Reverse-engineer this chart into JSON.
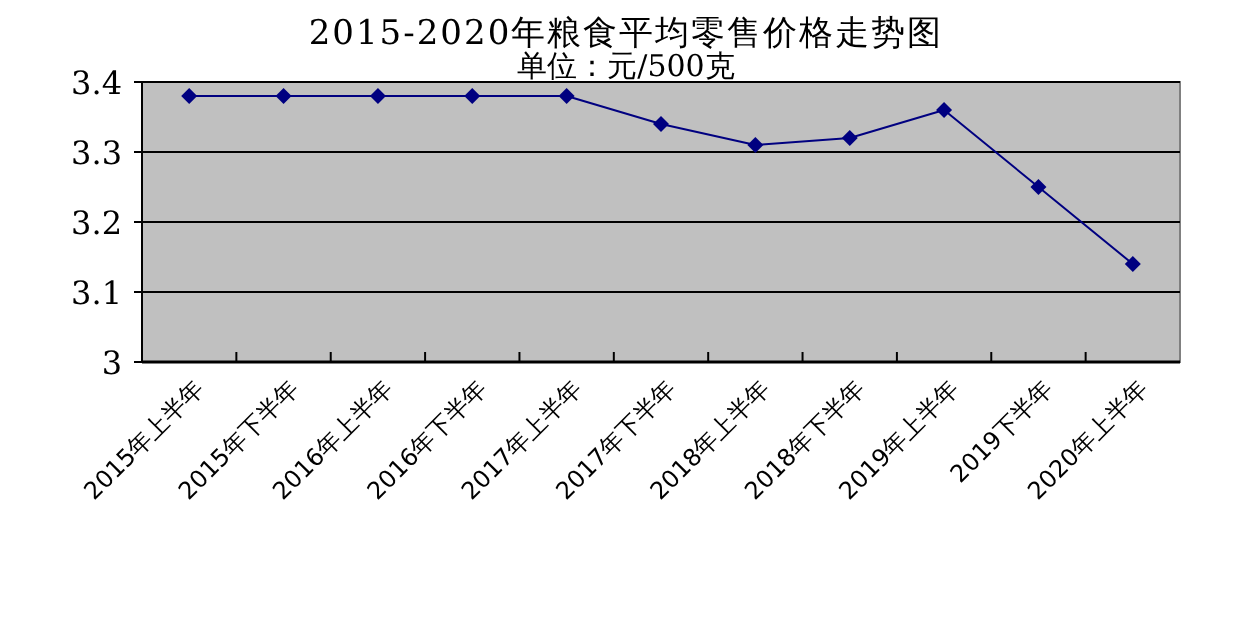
{
  "chart_data": {
    "type": "line",
    "title": "2015-2020年粮食平均零售价格走势图",
    "subtitle": "单位：元/500克",
    "categories": [
      "2015年上半年",
      "2015年下半年",
      "2016年上半年",
      "2016年下半年",
      "2017年上半年",
      "2017年下半年",
      "2018年上半年",
      "2018年下半年",
      "2019年上半年",
      "2019下半年",
      "2020年上半年"
    ],
    "series": [
      {
        "color": "#000080",
        "values": [
          3.38,
          3.38,
          3.38,
          3.38,
          3.38,
          3.34,
          3.31,
          3.32,
          3.36,
          3.25,
          3.14
        ]
      }
    ],
    "ylim": [
      3,
      3.4
    ],
    "yticks": [
      {
        "value": 3,
        "label": "3"
      },
      {
        "value": 3.1,
        "label": "3.1"
      },
      {
        "value": 3.2,
        "label": "3.2"
      },
      {
        "value": 3.3,
        "label": "3.3"
      },
      {
        "value": 3.4,
        "label": "3.4"
      }
    ],
    "grid": "y",
    "marker": "diamond",
    "line_style": "solid"
  }
}
